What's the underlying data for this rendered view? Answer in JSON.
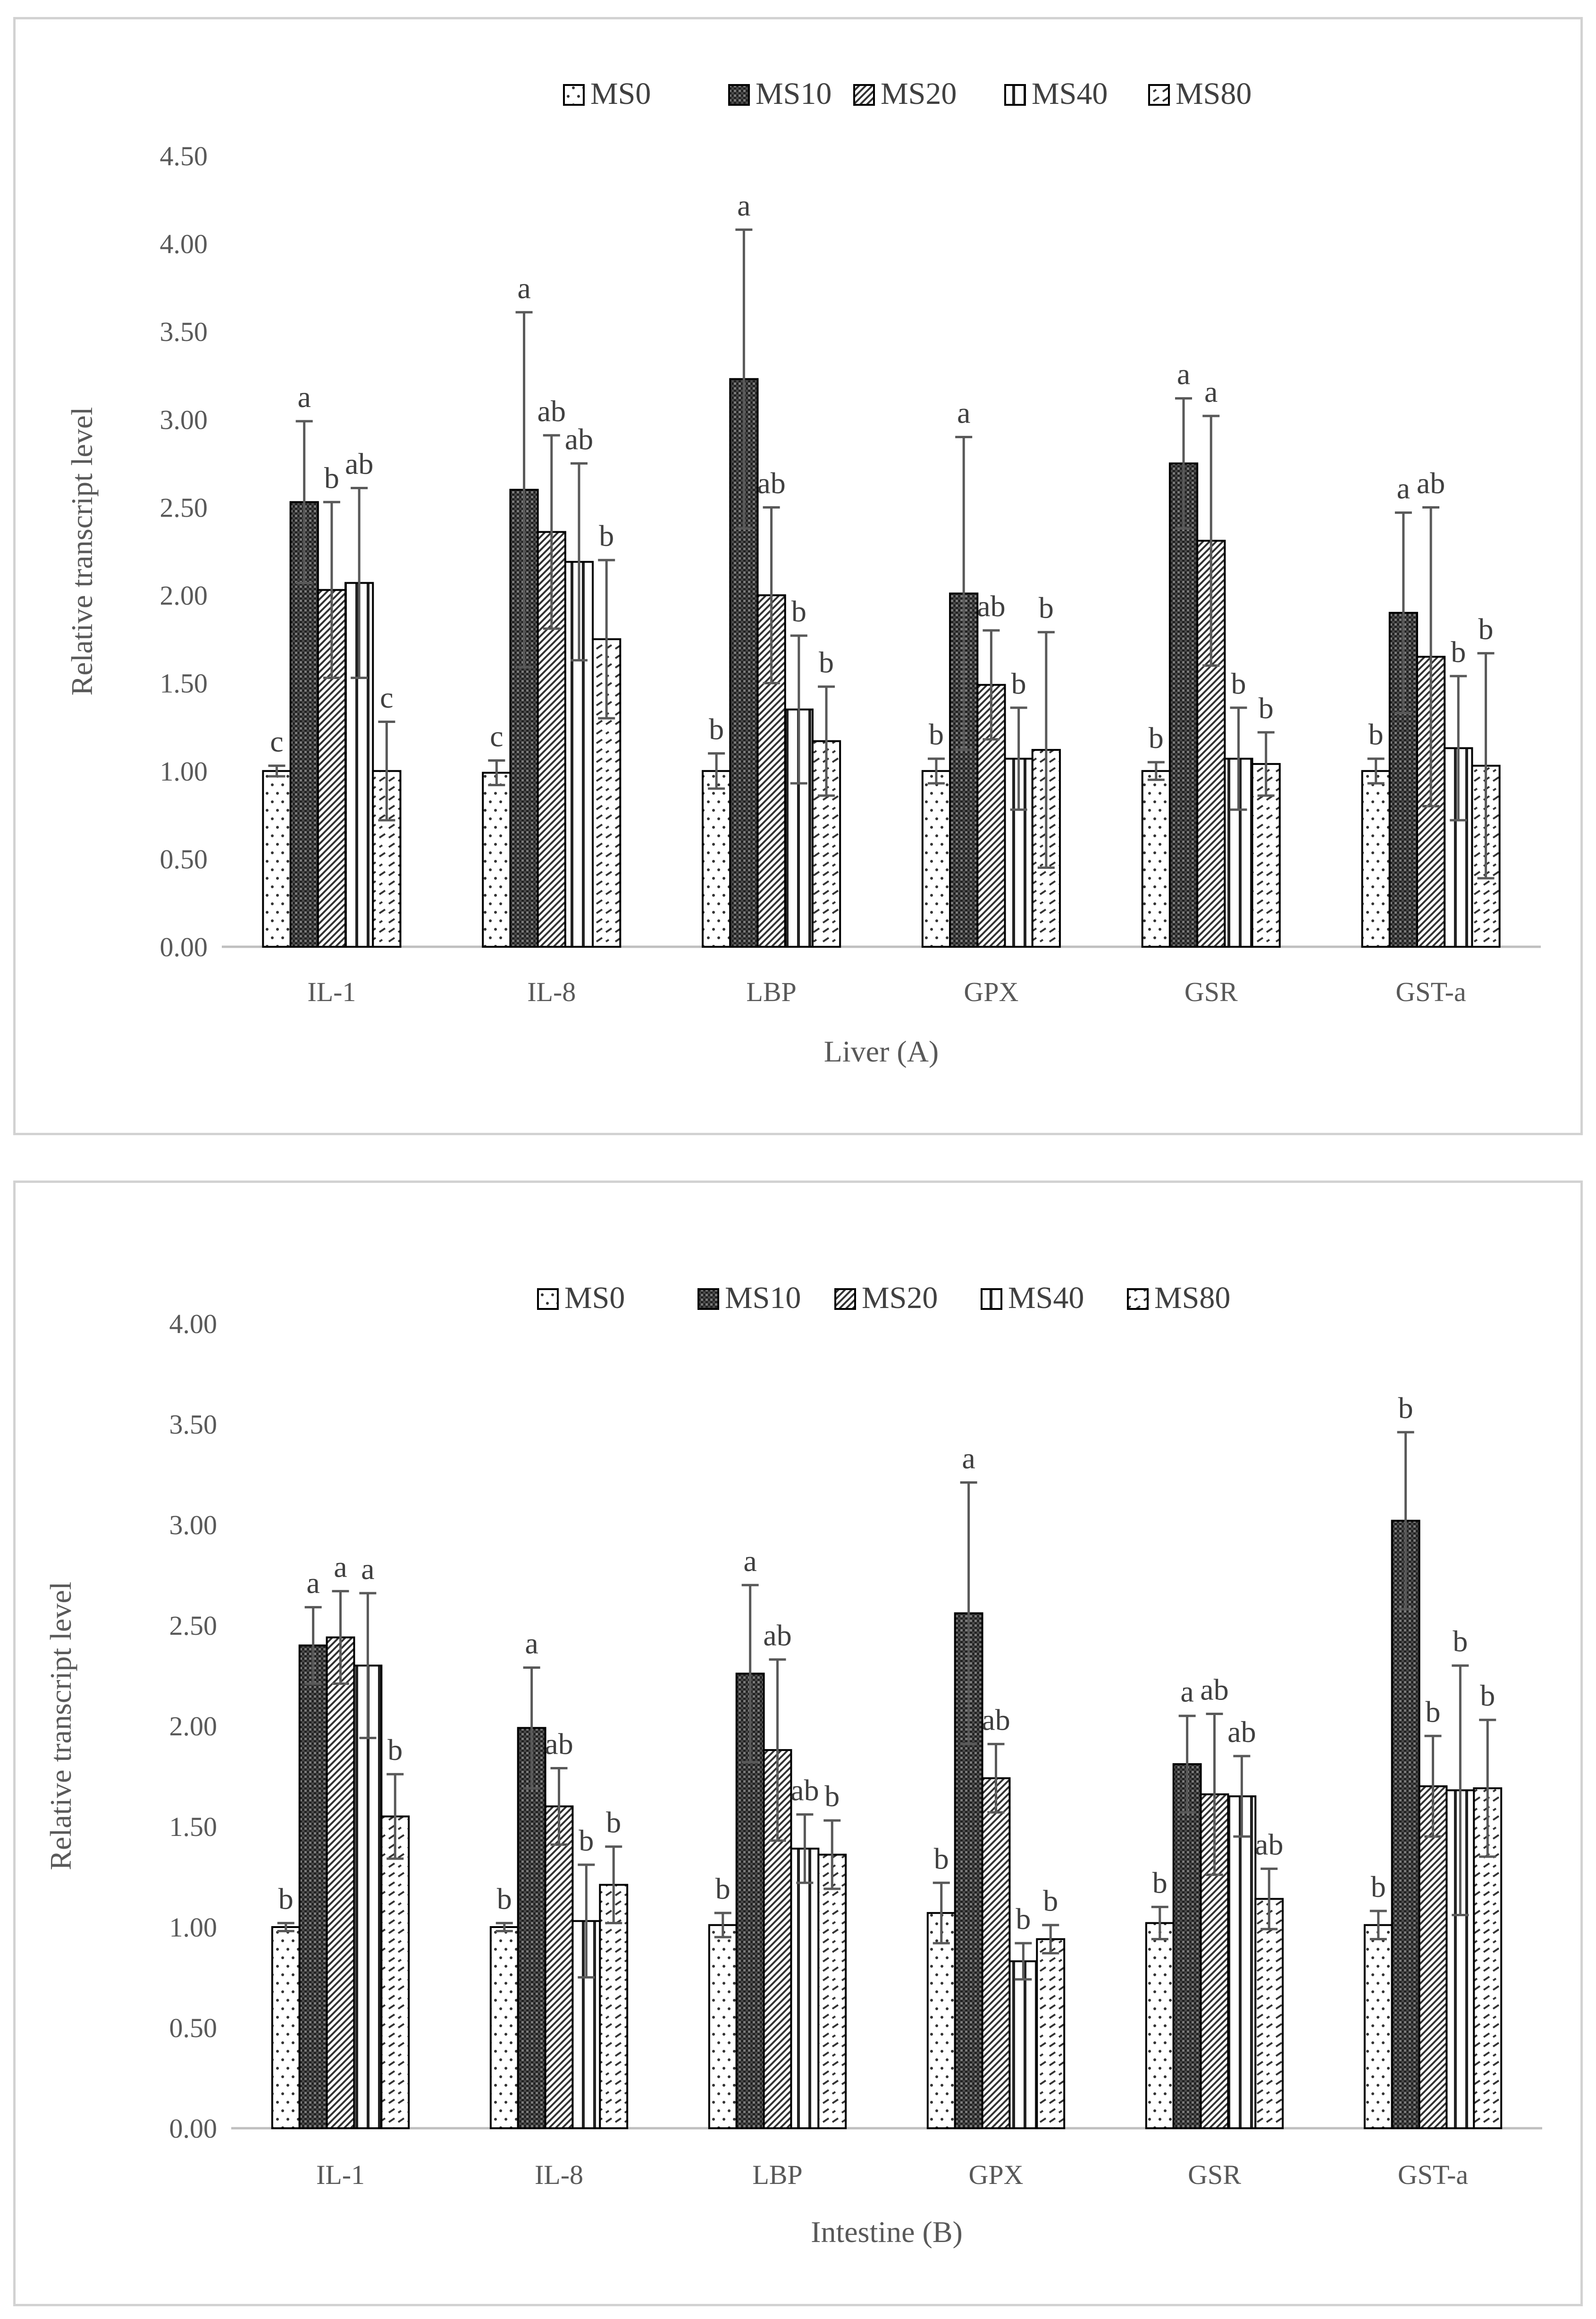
{
  "legend": [
    "MS0",
    "MS10",
    "MS20",
    "MS40",
    "MS80"
  ],
  "chart_data": [
    {
      "type": "bar",
      "title": "",
      "xlabel": "Liver (A)",
      "ylabel": "Relative transcript level",
      "ylim": [
        0,
        4.5
      ],
      "yticks": [
        "0.00",
        "0.50",
        "1.00",
        "1.50",
        "2.00",
        "2.50",
        "3.00",
        "3.50",
        "4.00",
        "4.50"
      ],
      "categories": [
        "IL-1",
        "IL-8",
        "LBP",
        "GPX",
        "GSR",
        "GST-a"
      ],
      "legend_position": "top",
      "grid": false,
      "series": [
        {
          "name": "MS0",
          "values": [
            1.0,
            0.99,
            1.0,
            1.0,
            1.0,
            1.0
          ],
          "errors": [
            0.03,
            0.07,
            0.1,
            0.07,
            0.05,
            0.07
          ],
          "labels": [
            "c",
            "c",
            "b",
            "b",
            "b",
            "b"
          ]
        },
        {
          "name": "MS10",
          "values": [
            2.53,
            2.6,
            3.23,
            2.01,
            2.75,
            1.9
          ],
          "errors": [
            0.46,
            1.01,
            0.85,
            0.89,
            0.37,
            0.57
          ],
          "labels": [
            "a",
            "a",
            "a",
            "a",
            "a",
            "a"
          ]
        },
        {
          "name": "MS20",
          "values": [
            2.03,
            2.36,
            2.0,
            1.49,
            2.31,
            1.65
          ],
          "errors": [
            0.5,
            0.55,
            0.5,
            0.31,
            0.71,
            0.85
          ],
          "labels": [
            "b",
            "ab",
            "ab",
            "ab",
            "a",
            "ab"
          ]
        },
        {
          "name": "MS40",
          "values": [
            2.07,
            2.19,
            1.35,
            1.07,
            1.07,
            1.13
          ],
          "errors": [
            0.54,
            0.56,
            0.42,
            0.29,
            0.29,
            0.41
          ],
          "labels": [
            "ab",
            "ab",
            "b",
            "b",
            "b",
            "b"
          ]
        },
        {
          "name": "MS80",
          "values": [
            1.0,
            1.75,
            1.17,
            1.12,
            1.04,
            1.03
          ],
          "errors": [
            0.28,
            0.45,
            0.31,
            0.67,
            0.18,
            0.64
          ],
          "labels": [
            "c",
            "b",
            "b",
            "b",
            "b",
            "b"
          ]
        }
      ]
    },
    {
      "type": "bar",
      "title": "",
      "xlabel": "Intestine (B)",
      "ylabel": "Relative transcript level",
      "ylim": [
        0,
        4.0
      ],
      "yticks": [
        "0.00",
        "0.50",
        "1.00",
        "1.50",
        "2.00",
        "2.50",
        "3.00",
        "3.50",
        "4.00"
      ],
      "categories": [
        "IL-1",
        "IL-8",
        "LBP",
        "GPX",
        "GSR",
        "GST-a"
      ],
      "legend_position": "top",
      "grid": false,
      "series": [
        {
          "name": "MS0",
          "values": [
            1.0,
            1.0,
            1.01,
            1.07,
            1.02,
            1.01
          ],
          "errors": [
            0.02,
            0.02,
            0.06,
            0.15,
            0.08,
            0.07
          ],
          "labels": [
            "b",
            "b",
            "b",
            "b",
            "b",
            "b"
          ]
        },
        {
          "name": "MS10",
          "values": [
            2.4,
            1.99,
            2.26,
            2.56,
            1.81,
            3.02
          ],
          "errors": [
            0.19,
            0.3,
            0.44,
            0.65,
            0.24,
            0.44
          ],
          "labels": [
            "a",
            "a",
            "a",
            "a",
            "a",
            "b"
          ]
        },
        {
          "name": "MS20",
          "values": [
            2.44,
            1.6,
            1.88,
            1.74,
            1.66,
            1.7
          ],
          "errors": [
            0.23,
            0.19,
            0.45,
            0.17,
            0.4,
            0.25
          ],
          "labels": [
            "a",
            "ab",
            "ab",
            "ab",
            "ab",
            "b"
          ]
        },
        {
          "name": "MS40",
          "values": [
            2.3,
            1.03,
            1.39,
            0.83,
            1.65,
            1.68
          ],
          "errors": [
            0.36,
            0.28,
            0.17,
            0.09,
            0.2,
            0.62
          ],
          "labels": [
            "a",
            "b",
            "ab",
            "b",
            "ab",
            "b"
          ]
        },
        {
          "name": "MS80",
          "values": [
            1.55,
            1.21,
            1.36,
            0.94,
            1.14,
            1.69
          ],
          "errors": [
            0.21,
            0.19,
            0.17,
            0.07,
            0.15,
            0.34
          ],
          "labels": [
            "b",
            "b",
            "b",
            "b",
            "ab",
            "b"
          ]
        }
      ]
    }
  ]
}
